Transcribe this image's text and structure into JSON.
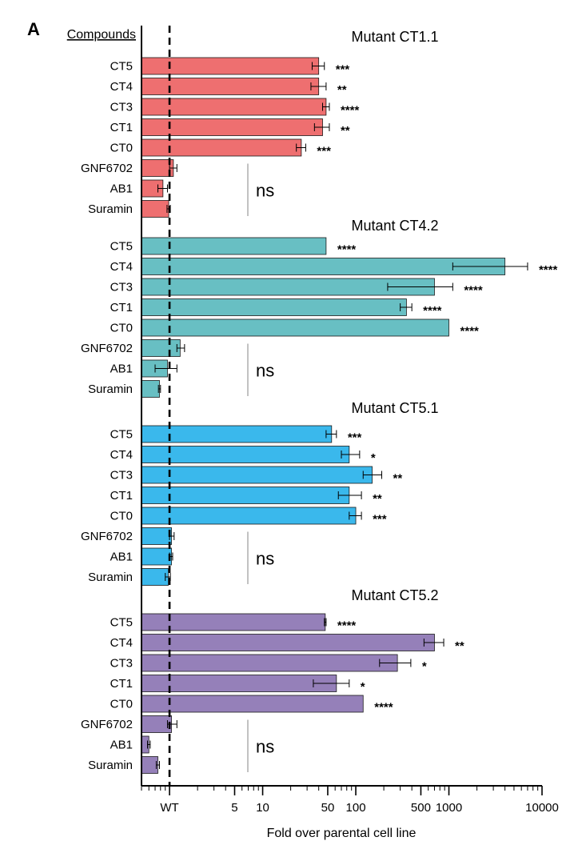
{
  "figure": {
    "panel_letter": "A",
    "row_header": "Compounds",
    "xlabel": "Fold over parental cell line"
  },
  "chart_data": {
    "type": "bar",
    "orientation": "horizontal",
    "x_scale": "log",
    "xlim": [
      0.5,
      10000
    ],
    "xlabel": "Fold over parental cell line",
    "x_ticks": [
      {
        "value": 1,
        "label": "WT"
      },
      {
        "value": 5,
        "label": "5"
      },
      {
        "value": 10,
        "label": "10"
      },
      {
        "value": 50,
        "label": "50"
      },
      {
        "value": 100,
        "label": "100"
      },
      {
        "value": 500,
        "label": "500"
      },
      {
        "value": 1000,
        "label": "1000"
      },
      {
        "value": 10000,
        "label": "10000"
      }
    ],
    "reference_line": {
      "value": 1,
      "label": "WT"
    },
    "categories": [
      "CT5",
      "CT4",
      "CT3",
      "CT1",
      "CT0",
      "GNF6702",
      "AB1",
      "Suramin"
    ],
    "ns_label": "ns",
    "panels": [
      {
        "title": "Mutant CT1.1",
        "color": "#ee6f70",
        "values": [
          40,
          40,
          48,
          44,
          26,
          1.1,
          0.85,
          0.98
        ],
        "errors": [
          [
            34,
            46
          ],
          [
            33,
            48
          ],
          [
            44,
            52
          ],
          [
            36,
            52
          ],
          [
            23,
            29
          ],
          [
            1.0,
            1.2
          ],
          [
            0.75,
            0.95
          ],
          [
            0.94,
            1.02
          ]
        ],
        "significance": [
          "***",
          "**",
          "****",
          "**",
          "***",
          "",
          "",
          ""
        ]
      },
      {
        "title": "Mutant CT4.2",
        "color": "#68bfc3",
        "values": [
          48,
          4000,
          700,
          350,
          1000,
          1.3,
          0.95,
          0.78
        ],
        "errors": [
          [
            48,
            48
          ],
          [
            1100,
            7000
          ],
          [
            220,
            1100
          ],
          [
            300,
            400
          ],
          [
            1000,
            1000
          ],
          [
            1.2,
            1.45
          ],
          [
            0.7,
            1.2
          ],
          [
            0.76,
            0.8
          ]
        ],
        "significance": [
          "****",
          "****",
          "****",
          "****",
          "****",
          "",
          "",
          ""
        ]
      },
      {
        "title": "Mutant CT5.1",
        "color": "#3ab8ec",
        "values": [
          55,
          85,
          150,
          85,
          100,
          1.05,
          1.05,
          0.97
        ],
        "errors": [
          [
            48,
            62
          ],
          [
            70,
            110
          ],
          [
            120,
            190
          ],
          [
            65,
            115
          ],
          [
            85,
            115
          ],
          [
            1.0,
            1.12
          ],
          [
            1.0,
            1.08
          ],
          [
            0.9,
            1.02
          ]
        ],
        "significance": [
          "***",
          "*",
          "**",
          "**",
          "***",
          "",
          "",
          ""
        ]
      },
      {
        "title": "Mutant CT5.2",
        "color": "#9580b9",
        "values": [
          47,
          700,
          280,
          62,
          120,
          1.05,
          0.6,
          0.75
        ],
        "errors": [
          [
            46,
            48
          ],
          [
            540,
            880
          ],
          [
            180,
            390
          ],
          [
            35,
            85
          ],
          [
            120,
            120
          ],
          [
            0.95,
            1.2
          ],
          [
            0.58,
            0.62
          ],
          [
            0.72,
            0.78
          ]
        ],
        "significance": [
          "****",
          "**",
          "*",
          "*",
          "****",
          "",
          "",
          ""
        ]
      }
    ]
  }
}
